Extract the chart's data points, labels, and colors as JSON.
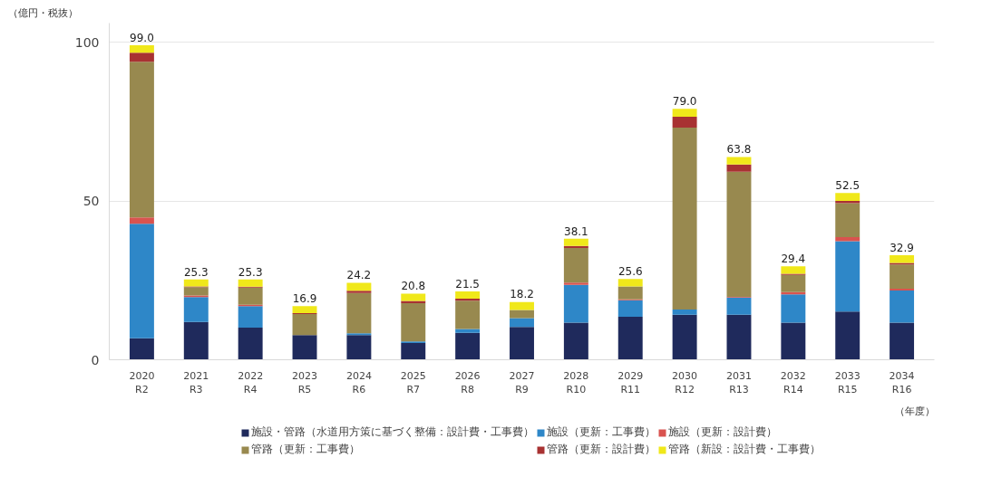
{
  "chart_data": {
    "type": "bar",
    "stacked": true,
    "ylabel": "（億円・税抜）",
    "xlabel": "（年度）",
    "categories": [
      "2020\nR2",
      "2021\nR3",
      "2022\nR4",
      "2023\nR5",
      "2024\nR6",
      "2025\nR7",
      "2026\nR8",
      "2027\nR9",
      "2028\nR10",
      "2029\nR11",
      "2030\nR12",
      "2031\nR13",
      "2032\nR14",
      "2033\nR15",
      "2034\nR16"
    ],
    "series": [
      {
        "name": "施設・管路（水道用方策に基づく整備：設計費・工事費）",
        "color": "#1f2a5c",
        "values": [
          6.8,
          11.9,
          10.1,
          7.8,
          7.8,
          5.3,
          8.5,
          10.3,
          11.7,
          13.5,
          14.2,
          14.2,
          11.7,
          15.2,
          11.7
        ]
      },
      {
        "name": "施設（更新：工事費）",
        "color": "#2e87c8",
        "values": [
          36.0,
          7.8,
          6.8,
          0,
          0.5,
          0.5,
          1.2,
          2.8,
          11.9,
          5.2,
          1.6,
          5.4,
          8.9,
          22.1,
          10.1
        ]
      },
      {
        "name": "施設（更新：設計費）",
        "color": "#d9534f",
        "values": [
          2.0,
          0.5,
          0.4,
          0,
          0,
          0,
          0,
          0,
          0.7,
          0.3,
          0,
          0.2,
          0.7,
          1.3,
          0.6
        ]
      },
      {
        "name": "管路（更新：工事費）",
        "color": "#98894f",
        "values": [
          49.0,
          2.7,
          5.4,
          6.6,
          12.7,
          12.0,
          8.9,
          2.6,
          10.9,
          4.1,
          57.3,
          39.4,
          5.4,
          10.7,
          7.6
        ]
      },
      {
        "name": "管路（更新：設計費）",
        "color": "#a83232",
        "values": [
          2.9,
          0.2,
          0.3,
          0.3,
          0.7,
          0.7,
          0.6,
          0,
          0.6,
          null,
          3.4,
          2.3,
          0.4,
          0.7,
          0.5
        ]
      },
      {
        "name": "管路（新設：設計費・工事費）",
        "color": "#f0e81a",
        "values": [
          2.3,
          2.2,
          2.3,
          2.2,
          2.5,
          2.3,
          2.3,
          2.5,
          2.3,
          2.3,
          2.5,
          2.3,
          2.3,
          2.5,
          2.4
        ]
      }
    ],
    "totals": [
      "99.0",
      "25.3",
      "25.3",
      "16.9",
      "24.2",
      "20.8",
      "21.5",
      "18.2",
      "38.1",
      "25.6",
      "79.0",
      "63.8",
      "29.4",
      "52.5",
      "32.9"
    ],
    "ylim": [
      0,
      106
    ],
    "yticks": [
      0,
      50,
      100
    ],
    "grid": "y",
    "legend": "bottom"
  }
}
